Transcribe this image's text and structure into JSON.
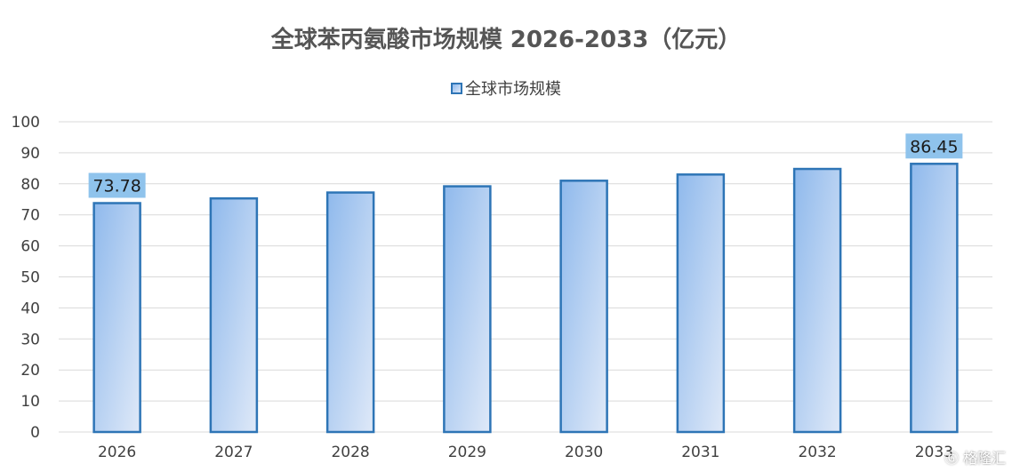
{
  "chart_data": {
    "type": "bar",
    "title": "全球苯丙氨酸市场规模 2026-2033（亿元）",
    "categories": [
      "2026",
      "2027",
      "2028",
      "2029",
      "2030",
      "2031",
      "2032",
      "2033"
    ],
    "series": [
      {
        "name": "全球市场规模",
        "values": [
          73.78,
          75.3,
          77.2,
          79.2,
          81.0,
          83.0,
          84.8,
          86.45
        ]
      }
    ],
    "data_labels": [
      {
        "category": "2026",
        "text": "73.78"
      },
      {
        "category": "2033",
        "text": "86.45"
      }
    ],
    "ylim": [
      0,
      100
    ],
    "yticks": [
      "0",
      "10",
      "20",
      "30",
      "40",
      "50",
      "60",
      "70",
      "80",
      "90",
      "100"
    ],
    "xlabel": "",
    "ylabel": "",
    "grid": true,
    "legend_position": "top",
    "colors": {
      "bar_border": "#2e75b6",
      "bar_fill_start": "#8fb9ec",
      "bar_fill_end": "#dfe9f8",
      "label_bg": "#8fc3ec",
      "grid": "#d9d9d9",
      "axis_text": "#404040"
    }
  },
  "watermark": "格隆汇",
  "watermark_icon": "gelonghui-logo-icon"
}
